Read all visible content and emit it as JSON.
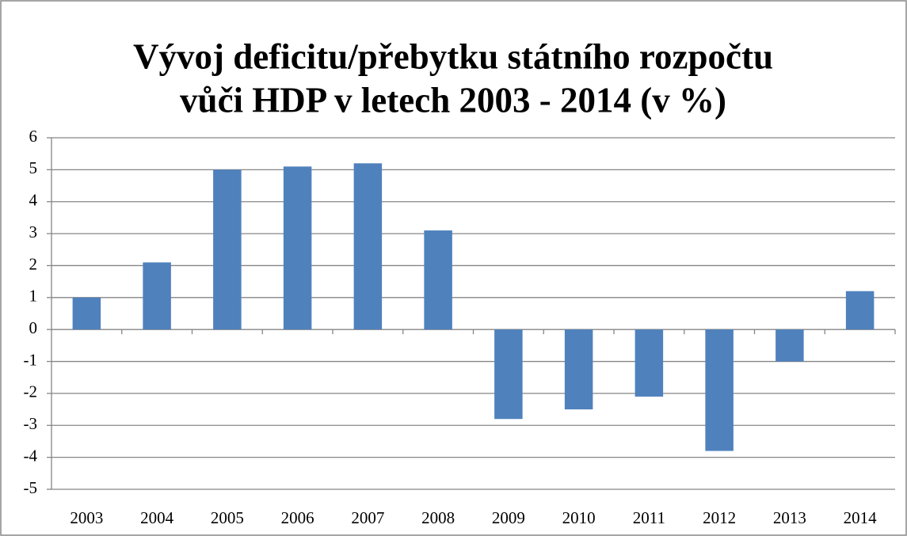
{
  "chart_data": {
    "type": "bar",
    "title": [
      "Vývoj deficitu/přebytku státního rozpočtu",
      "vůči HDP v letech 2003 - 2014 (v %)"
    ],
    "categories": [
      "2003",
      "2004",
      "2005",
      "2006",
      "2007",
      "2008",
      "2009",
      "2010",
      "2011",
      "2012",
      "2013",
      "2014"
    ],
    "values": [
      1,
      2.1,
      5,
      5.1,
      5.2,
      3.1,
      -2.8,
      -2.5,
      -2.1,
      -3.8,
      -1,
      1.2
    ],
    "color": "#4f81bd",
    "ylim": [
      -5,
      6
    ],
    "yticks": [
      -5,
      -4,
      -3,
      -2,
      -1,
      0,
      1,
      2,
      3,
      4,
      5,
      6
    ],
    "grid": true
  }
}
